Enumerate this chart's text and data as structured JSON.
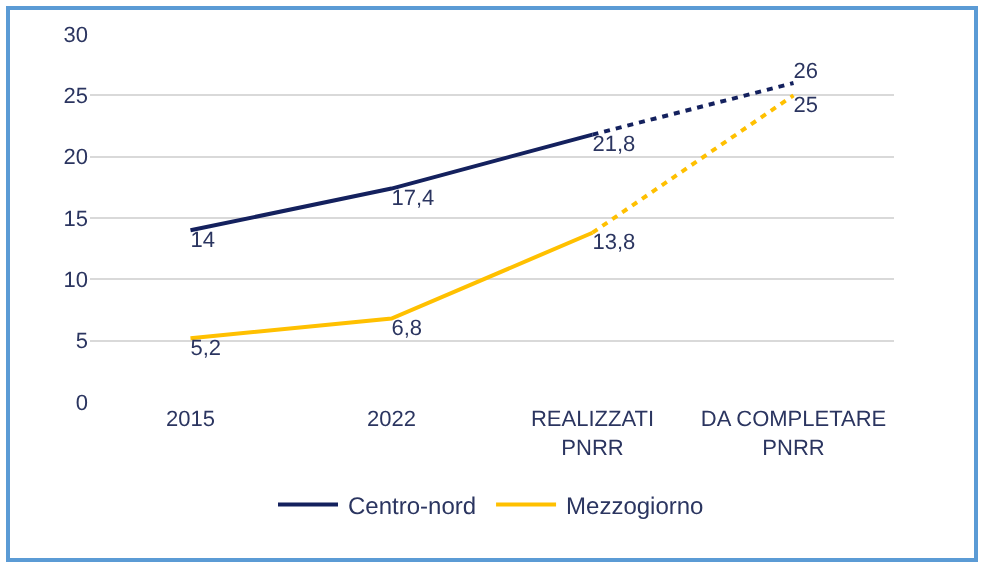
{
  "chart_data": {
    "type": "line",
    "categories": [
      "2015",
      "2022",
      "REALIZZATI PNRR",
      "DA COMPLETARE PNRR"
    ],
    "series": [
      {
        "name": "Centro-nord",
        "color": "#14215e",
        "line_style": "solid",
        "values": [
          14,
          17.4,
          21.8,
          null
        ],
        "value_labels": [
          "14",
          "17,4",
          "21,8",
          null
        ]
      },
      {
        "color": "#14215e",
        "line_style": "dotted",
        "values": [
          null,
          null,
          21.8,
          26
        ],
        "value_labels": [
          null,
          null,
          null,
          "26"
        ]
      },
      {
        "name": "Mezzogiorno",
        "color": "#ffc000",
        "line_style": "solid",
        "values": [
          5.2,
          6.8,
          13.8,
          null
        ],
        "value_labels": [
          "5,2",
          "6,8",
          "13,8",
          null
        ]
      },
      {
        "color": "#ffc000",
        "line_style": "dotted",
        "values": [
          null,
          null,
          13.8,
          25
        ],
        "value_labels": [
          null,
          null,
          null,
          "25"
        ]
      }
    ],
    "ylim": [
      0,
      30
    ],
    "yticks": [
      0,
      5,
      10,
      15,
      20,
      25,
      30
    ],
    "grid": "y",
    "legend": "bottom",
    "marker": "none"
  }
}
